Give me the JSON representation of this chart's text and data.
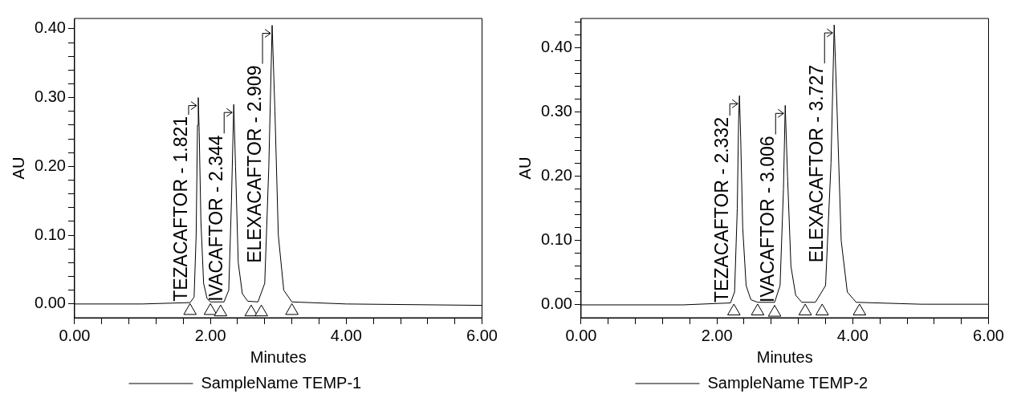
{
  "chart_data": [
    {
      "type": "line",
      "xlabel": "Minutes",
      "ylabel": "AU",
      "xlim": [
        0,
        6
      ],
      "ylim": [
        -0.02,
        0.415
      ],
      "legend": "bottom",
      "grid": false,
      "marker": "none",
      "xticks": [
        {
          "value": 0,
          "label": "0.00"
        },
        {
          "value": 0.4,
          "label": null
        },
        {
          "value": 0.8,
          "label": null
        },
        {
          "value": 1.2,
          "label": null
        },
        {
          "value": 1.6,
          "label": null
        },
        {
          "value": 2,
          "label": "2.00"
        },
        {
          "value": 2.4,
          "label": null
        },
        {
          "value": 2.8,
          "label": null
        },
        {
          "value": 3.2,
          "label": null
        },
        {
          "value": 3.6,
          "label": null
        },
        {
          "value": 4,
          "label": "4.00"
        },
        {
          "value": 4.4,
          "label": null
        },
        {
          "value": 4.8,
          "label": null
        },
        {
          "value": 5.2,
          "label": null
        },
        {
          "value": 5.6,
          "label": null
        },
        {
          "value": 6,
          "label": "6.00"
        }
      ],
      "yticks": [
        {
          "value": 0,
          "label": "0.00"
        },
        {
          "value": 0.02,
          "label": null
        },
        {
          "value": 0.04,
          "label": null
        },
        {
          "value": 0.06,
          "label": null
        },
        {
          "value": 0.08,
          "label": null
        },
        {
          "value": 0.1,
          "label": "0.10"
        },
        {
          "value": 0.12,
          "label": null
        },
        {
          "value": 0.14,
          "label": null
        },
        {
          "value": 0.16,
          "label": null
        },
        {
          "value": 0.18,
          "label": null
        },
        {
          "value": 0.2,
          "label": "0.20"
        },
        {
          "value": 0.22,
          "label": null
        },
        {
          "value": 0.24,
          "label": null
        },
        {
          "value": 0.26,
          "label": null
        },
        {
          "value": 0.28,
          "label": null
        },
        {
          "value": 0.3,
          "label": "0.30"
        },
        {
          "value": 0.32,
          "label": null
        },
        {
          "value": 0.34,
          "label": null
        },
        {
          "value": 0.36,
          "label": null
        },
        {
          "value": 0.38,
          "label": null
        },
        {
          "value": 0.4,
          "label": "0.40"
        }
      ],
      "series": [
        {
          "name": "SampleName TEMP-1",
          "color": "#000000",
          "x": [
            0,
            1.0,
            1.7,
            1.76,
            1.79,
            1.81,
            1.821,
            1.835,
            1.86,
            1.9,
            1.95,
            2.0,
            2.2,
            2.27,
            2.31,
            2.344,
            2.37,
            2.41,
            2.47,
            2.55,
            2.7,
            2.8,
            2.86,
            2.909,
            2.95,
            3.0,
            3.08,
            3.2,
            4.0,
            6.0
          ],
          "values": [
            0,
            0,
            0.002,
            0.01,
            0.1,
            0.26,
            0.3,
            0.25,
            0.12,
            0.03,
            0.008,
            0.003,
            0.003,
            0.02,
            0.15,
            0.29,
            0.2,
            0.06,
            0.015,
            0.004,
            0.003,
            0.03,
            0.2,
            0.405,
            0.28,
            0.1,
            0.02,
            0.003,
            0,
            -0.002
          ]
        },
        {
          "type": "scatter",
          "color": "#000000",
          "marker": "triangle",
          "x": [
            1.7,
            2.0,
            2.15,
            2.6,
            2.75,
            3.2
          ],
          "values": [
            -0.01,
            -0.01,
            -0.012,
            -0.012,
            -0.012,
            -0.01
          ]
        }
      ],
      "annotations": [
        {
          "text": "TEZACAFTOR - 1.821",
          "x": 1.821,
          "y": 0.3
        },
        {
          "text": "IVACAFTOR - 2.344",
          "x": 2.344,
          "y": 0.29
        },
        {
          "text": "ELEXACAFTOR - 2.909",
          "x": 2.909,
          "y": 0.405
        }
      ]
    },
    {
      "type": "line",
      "xlabel": "Minutes",
      "ylabel": "AU",
      "xlim": [
        0,
        6
      ],
      "ylim": [
        -0.02,
        0.445
      ],
      "legend": "bottom",
      "grid": false,
      "marker": "none",
      "xticks": [
        {
          "value": 0,
          "label": "0.00"
        },
        {
          "value": 0.4,
          "label": null
        },
        {
          "value": 0.8,
          "label": null
        },
        {
          "value": 1.2,
          "label": null
        },
        {
          "value": 1.6,
          "label": null
        },
        {
          "value": 2,
          "label": "2.00"
        },
        {
          "value": 2.4,
          "label": null
        },
        {
          "value": 2.8,
          "label": null
        },
        {
          "value": 3.2,
          "label": null
        },
        {
          "value": 3.6,
          "label": null
        },
        {
          "value": 4,
          "label": "4.00"
        },
        {
          "value": 4.4,
          "label": null
        },
        {
          "value": 4.8,
          "label": null
        },
        {
          "value": 5.2,
          "label": null
        },
        {
          "value": 5.6,
          "label": null
        },
        {
          "value": 6,
          "label": "6.00"
        }
      ],
      "yticks": [
        {
          "value": 0,
          "label": "0.00"
        },
        {
          "value": 0.02,
          "label": null
        },
        {
          "value": 0.04,
          "label": null
        },
        {
          "value": 0.06,
          "label": null
        },
        {
          "value": 0.08,
          "label": null
        },
        {
          "value": 0.1,
          "label": "0.10"
        },
        {
          "value": 0.12,
          "label": null
        },
        {
          "value": 0.14,
          "label": null
        },
        {
          "value": 0.16,
          "label": null
        },
        {
          "value": 0.18,
          "label": null
        },
        {
          "value": 0.2,
          "label": "0.20"
        },
        {
          "value": 0.22,
          "label": null
        },
        {
          "value": 0.24,
          "label": null
        },
        {
          "value": 0.26,
          "label": null
        },
        {
          "value": 0.28,
          "label": null
        },
        {
          "value": 0.3,
          "label": "0.30"
        },
        {
          "value": 0.32,
          "label": null
        },
        {
          "value": 0.34,
          "label": null
        },
        {
          "value": 0.36,
          "label": null
        },
        {
          "value": 0.38,
          "label": null
        },
        {
          "value": 0.4,
          "label": "0.40"
        },
        {
          "value": 0.42,
          "label": null
        },
        {
          "value": 0.44,
          "label": null
        }
      ],
      "series": [
        {
          "name": "SampleName TEMP-2",
          "color": "#000000",
          "x": [
            0,
            1.5,
            2.2,
            2.26,
            2.3,
            2.32,
            2.332,
            2.35,
            2.38,
            2.43,
            2.5,
            2.6,
            2.85,
            2.93,
            2.98,
            3.006,
            3.04,
            3.09,
            3.16,
            3.25,
            3.45,
            3.6,
            3.68,
            3.727,
            3.77,
            3.83,
            3.92,
            4.05,
            5.0,
            6.0
          ],
          "values": [
            0,
            0,
            0.003,
            0.02,
            0.15,
            0.29,
            0.325,
            0.26,
            0.12,
            0.03,
            0.008,
            0.004,
            0.004,
            0.03,
            0.18,
            0.31,
            0.2,
            0.06,
            0.015,
            0.004,
            0.004,
            0.03,
            0.22,
            0.435,
            0.3,
            0.1,
            0.02,
            0.004,
            0.001,
            0.001
          ]
        },
        {
          "type": "scatter",
          "color": "#000000",
          "marker": "triangle",
          "x": [
            2.25,
            2.6,
            2.85,
            3.3,
            3.55,
            4.1
          ],
          "values": [
            -0.01,
            -0.01,
            -0.012,
            -0.01,
            -0.01,
            -0.01
          ]
        }
      ],
      "annotations": [
        {
          "text": "TEZACAFTOR - 2.332",
          "x": 2.332,
          "y": 0.325
        },
        {
          "text": "IVACAFTOR - 3.006",
          "x": 3.006,
          "y": 0.31
        },
        {
          "text": "ELEXACAFTOR - 3.727",
          "x": 3.727,
          "y": 0.435
        }
      ]
    }
  ]
}
